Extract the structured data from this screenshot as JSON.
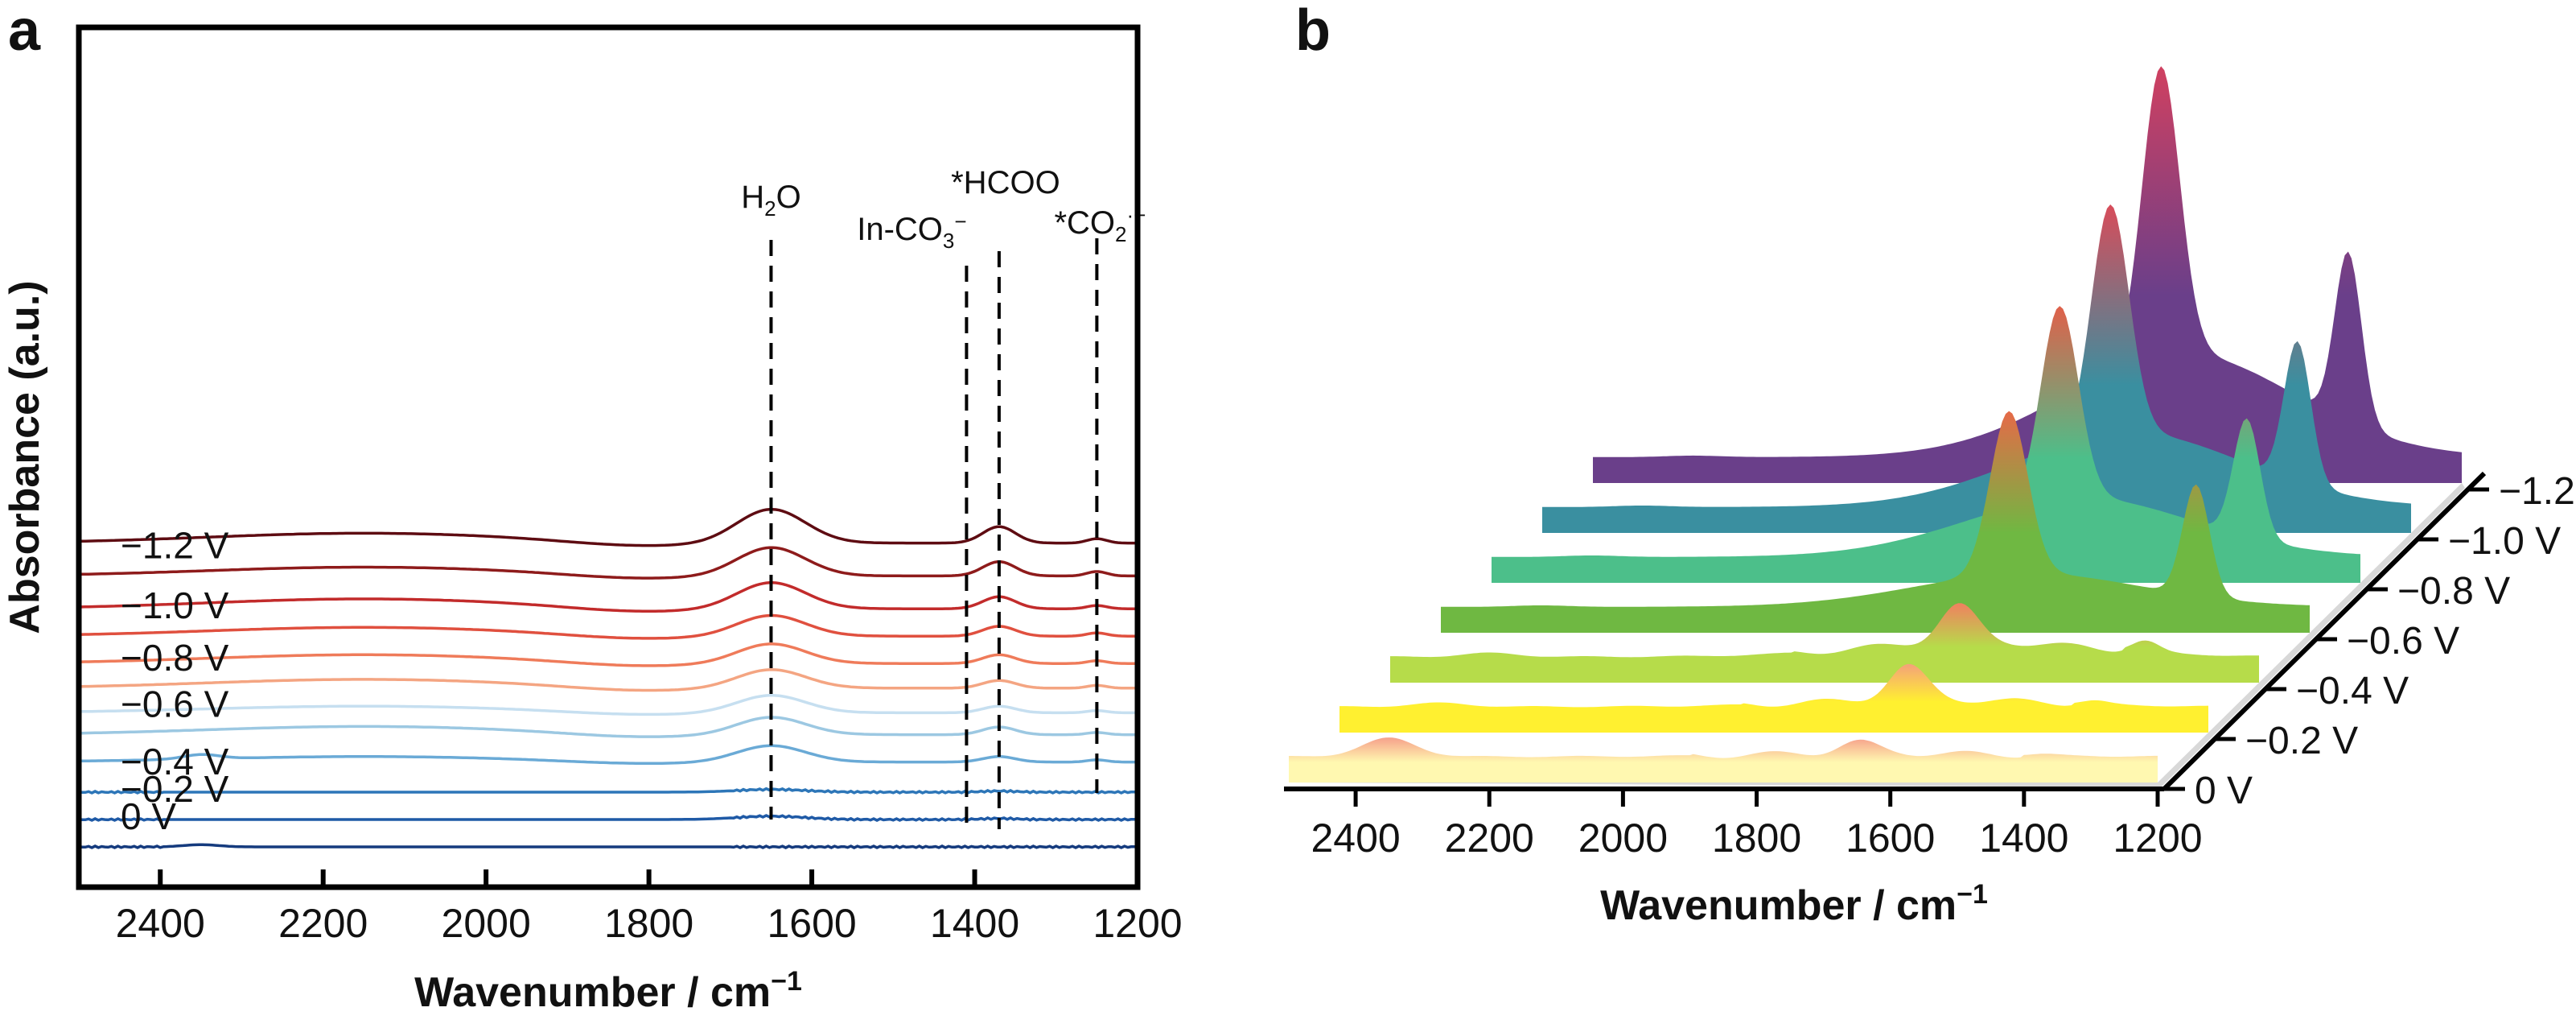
{
  "panels": {
    "a": "a",
    "b": "b"
  },
  "chart_data": [
    {
      "panel": "a",
      "type": "line",
      "xlabel": "Wavenumber / cm",
      "xlabel_sup": "−1",
      "ylabel": "Absorbance (a.u.)",
      "xlim": [
        2500,
        1200
      ],
      "x_reversed": true,
      "xticks": [
        2400,
        2200,
        2000,
        1800,
        1600,
        1400,
        1200
      ],
      "yticks_shown": false,
      "series": [
        {
          "name": "0 V",
          "label": "0 V",
          "color": "#153b7e",
          "offset": 0.0,
          "baseline_wave": 0.0,
          "peaks": {
            "H2O": 0.0,
            "HCOO": 0.0,
            "CO2": 0.0,
            "CO2_2350": 0.004
          }
        },
        {
          "name": "−0.2 V",
          "label": "−0.2 V",
          "color": "#1f5aa6",
          "offset": 0.05,
          "baseline_wave": 0.0,
          "peaks": {
            "H2O": 0.006,
            "HCOO": 0.002,
            "CO2": 0.0,
            "CO2_2350": 0.0
          }
        },
        {
          "name": "−0.4 V",
          "label": "−0.4 V",
          "color": "#2d76b8",
          "offset": 0.1,
          "baseline_wave": 0.0,
          "peaks": {
            "H2O": 0.005,
            "HCOO": 0.002,
            "CO2": 0.0,
            "CO2_2350": 0.0
          }
        },
        {
          "name": "−0.4 V b",
          "label": "",
          "color": "#6aaad6",
          "offset": 0.155,
          "baseline_wave": 0.01,
          "peaks": {
            "H2O": 0.03,
            "HCOO": 0.01,
            "CO2": 0.004,
            "CO2_2350": 0.008
          }
        },
        {
          "name": "−0.6 V",
          "label": "−0.6 V",
          "color": "#9cc8e2",
          "offset": 0.205,
          "baseline_wave": 0.015,
          "peaks": {
            "H2O": 0.032,
            "HCOO": 0.014,
            "CO2": 0.004,
            "CO2_2350": 0.0
          }
        },
        {
          "name": "−0.6 V b",
          "label": "",
          "color": "#c6dff0",
          "offset": 0.245,
          "baseline_wave": 0.012,
          "peaks": {
            "H2O": 0.032,
            "HCOO": 0.012,
            "CO2": 0.004,
            "CO2_2350": 0.0
          }
        },
        {
          "name": "−0.8 V",
          "label": "−0.8 V",
          "color": "#f4a582",
          "offset": 0.29,
          "baseline_wave": 0.016,
          "peaks": {
            "H2O": 0.034,
            "HCOO": 0.014,
            "CO2": 0.005,
            "CO2_2350": 0.0
          }
        },
        {
          "name": "−0.8 V b",
          "label": "",
          "color": "#ef7b5a",
          "offset": 0.335,
          "baseline_wave": 0.016,
          "peaks": {
            "H2O": 0.036,
            "HCOO": 0.016,
            "CO2": 0.005,
            "CO2_2350": 0.0
          }
        },
        {
          "name": "−1.0 V",
          "label": "−1.0 V",
          "color": "#e0503f",
          "offset": 0.385,
          "baseline_wave": 0.016,
          "peaks": {
            "H2O": 0.038,
            "HCOO": 0.018,
            "CO2": 0.006,
            "CO2_2350": 0.0
          }
        },
        {
          "name": "−1.0 V b",
          "label": "",
          "color": "#c22b2b",
          "offset": 0.435,
          "baseline_wave": 0.018,
          "peaks": {
            "H2O": 0.048,
            "HCOO": 0.022,
            "CO2": 0.006,
            "CO2_2350": 0.0
          }
        },
        {
          "name": "−1.2 V",
          "label": "−1.2 V",
          "color": "#8e1b1b",
          "offset": 0.495,
          "baseline_wave": 0.016,
          "peaks": {
            "H2O": 0.052,
            "HCOO": 0.026,
            "CO2": 0.008,
            "CO2_2350": 0.0
          }
        },
        {
          "name": "−1.2 V top",
          "label": "",
          "color": "#5e0c12",
          "offset": 0.555,
          "baseline_wave": 0.018,
          "peaks": {
            "H2O": 0.062,
            "HCOO": 0.03,
            "CO2": 0.008,
            "CO2_2350": 0.0
          }
        }
      ],
      "reference_lines": [
        {
          "x": 1650,
          "label": "H",
          "sub": "2",
          "post": "O"
        },
        {
          "x": 1410,
          "label": "In-CO",
          "sub": "3",
          "sup": "−"
        },
        {
          "x": 1370,
          "label": "*HCOO"
        },
        {
          "x": 1250,
          "label": "*CO",
          "sub": "2",
          "sup": "·−"
        }
      ]
    },
    {
      "panel": "b",
      "type": "area",
      "projection": "3d-waterfall",
      "xlabel": "Wavenumber / cm",
      "xlabel_sup": "−1",
      "xlim": [
        2500,
        1200
      ],
      "x_reversed": true,
      "xticks": [
        2400,
        2200,
        2000,
        1800,
        1600,
        1400,
        1200
      ],
      "zticks": [
        "0 V",
        "−0.2 V",
        "−0.4 V",
        "−0.6 V",
        "−0.8 V",
        "−1.0 V",
        "−1.2 V"
      ],
      "layers": [
        {
          "name": "0 V",
          "color": "#fff8b0",
          "peak_color": "#f6a08a",
          "peaks": {
            "H2O": 0.15,
            "HCOO": 0.02,
            "CO2_2350": 0.25,
            "broad": 0.05
          }
        },
        {
          "name": "−0.2 V",
          "color": "#fff030",
          "peak_color": "#f4a27a",
          "peaks": {
            "H2O": 0.45,
            "HCOO": 0.05,
            "CO2_2350": 0.05,
            "broad": 0.1
          }
        },
        {
          "name": "−0.4 V",
          "color": "#b6dc4a",
          "peak_color": "#f08060",
          "peaks": {
            "H2O": 0.5,
            "HCOO": 0.15,
            "CO2_2350": 0.05,
            "broad": 0.2
          }
        },
        {
          "name": "−0.6 V",
          "color": "#6fb842",
          "peak_color": "#e66a48",
          "peaks": {
            "H2O": 2.2,
            "HCOO": 1.5,
            "CO2_2350": 0.02,
            "broad": 0.45
          }
        },
        {
          "name": "−0.8 V",
          "color": "#4cbf8a",
          "peak_color": "#e0604a",
          "peaks": {
            "H2O": 2.6,
            "HCOO": 1.6,
            "CO2_2350": 0.02,
            "broad": 0.8
          }
        },
        {
          "name": "−1.0 V",
          "color": "#3a8fa0",
          "peak_color": "#d84c5a",
          "peaks": {
            "H2O": 3.1,
            "HCOO": 1.9,
            "CO2_2350": 0.02,
            "broad": 1.0
          }
        },
        {
          "name": "−1.2 V",
          "color": "#6a3f8a",
          "peak_color": "#d04060",
          "peaks": {
            "H2O": 3.9,
            "HCOO": 2.3,
            "CO2_2350": 0.02,
            "broad": 1.4
          }
        }
      ]
    }
  ]
}
